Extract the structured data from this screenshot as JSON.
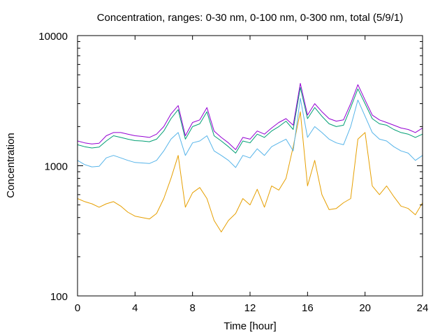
{
  "chart_data": {
    "type": "line",
    "title": "Concentration, ranges: 0-30 nm, 0-100 nm, 0-300 nm, total (5/9/1)",
    "xlabel": "Time [hour]",
    "ylabel": "Concentration",
    "xlim": [
      0,
      24
    ],
    "ylim": [
      100,
      10000
    ],
    "yscale": "log",
    "x_ticks": [
      0,
      4,
      8,
      12,
      16,
      20,
      24
    ],
    "x_tick_labels": [
      "0",
      "4",
      "8",
      "12",
      "16",
      "20",
      "24"
    ],
    "y_ticks": [
      100,
      1000,
      10000
    ],
    "y_tick_labels": [
      "100",
      "1000",
      "10000"
    ],
    "grid": false,
    "x": [
      0,
      0.5,
      1,
      1.5,
      2,
      2.5,
      3,
      3.5,
      4,
      4.5,
      5,
      5.5,
      6,
      6.5,
      7,
      7.5,
      8,
      8.5,
      9,
      9.5,
      10,
      10.5,
      11,
      11.5,
      12,
      12.5,
      13,
      13.5,
      14,
      14.5,
      15,
      15.5,
      16,
      16.5,
      17,
      17.5,
      18,
      18.5,
      19,
      19.5,
      20,
      20.5,
      21,
      21.5,
      22,
      22.5,
      23,
      23.5,
      24
    ],
    "series": [
      {
        "color": "#e69f00",
        "values": [
          560,
          530,
          510,
          480,
          510,
          530,
          490,
          440,
          410,
          400,
          390,
          430,
          560,
          800,
          1200,
          480,
          620,
          680,
          560,
          380,
          310,
          380,
          430,
          560,
          500,
          660,
          480,
          700,
          650,
          800,
          1400,
          2600,
          700,
          1100,
          600,
          460,
          470,
          520,
          560,
          1600,
          1800,
          700,
          600,
          700,
          580,
          490,
          470,
          420,
          520
        ]
      },
      {
        "color": "#56b4e9",
        "values": [
          1100,
          1020,
          980,
          990,
          1150,
          1200,
          1150,
          1100,
          1060,
          1050,
          1040,
          1100,
          1300,
          1600,
          1800,
          1200,
          1500,
          1550,
          1700,
          1300,
          1200,
          1100,
          970,
          1200,
          1150,
          1350,
          1200,
          1400,
          1500,
          1600,
          1300,
          3300,
          1650,
          2000,
          1800,
          1600,
          1500,
          1450,
          2000,
          3200,
          2400,
          1800,
          1600,
          1550,
          1400,
          1300,
          1250,
          1100,
          1200
        ]
      },
      {
        "color": "#009e73",
        "values": [
          1450,
          1400,
          1370,
          1390,
          1550,
          1700,
          1650,
          1600,
          1560,
          1550,
          1530,
          1600,
          1850,
          2300,
          2700,
          1600,
          2000,
          2100,
          2600,
          1700,
          1550,
          1400,
          1250,
          1550,
          1500,
          1750,
          1650,
          1850,
          2000,
          2200,
          1900,
          4000,
          2300,
          2800,
          2400,
          2100,
          2000,
          2050,
          2800,
          3900,
          3000,
          2300,
          2100,
          2050,
          1900,
          1800,
          1750,
          1650,
          1750
        ]
      },
      {
        "color": "#9400d3",
        "values": [
          1550,
          1500,
          1470,
          1490,
          1700,
          1800,
          1800,
          1750,
          1700,
          1680,
          1650,
          1750,
          2000,
          2500,
          2900,
          1700,
          2150,
          2250,
          2800,
          1850,
          1650,
          1500,
          1330,
          1650,
          1600,
          1850,
          1750,
          1950,
          2150,
          2300,
          2050,
          4300,
          2450,
          3000,
          2600,
          2300,
          2200,
          2250,
          3000,
          4200,
          3200,
          2450,
          2250,
          2150,
          2050,
          1950,
          1900,
          1800,
          1950
        ]
      }
    ]
  }
}
